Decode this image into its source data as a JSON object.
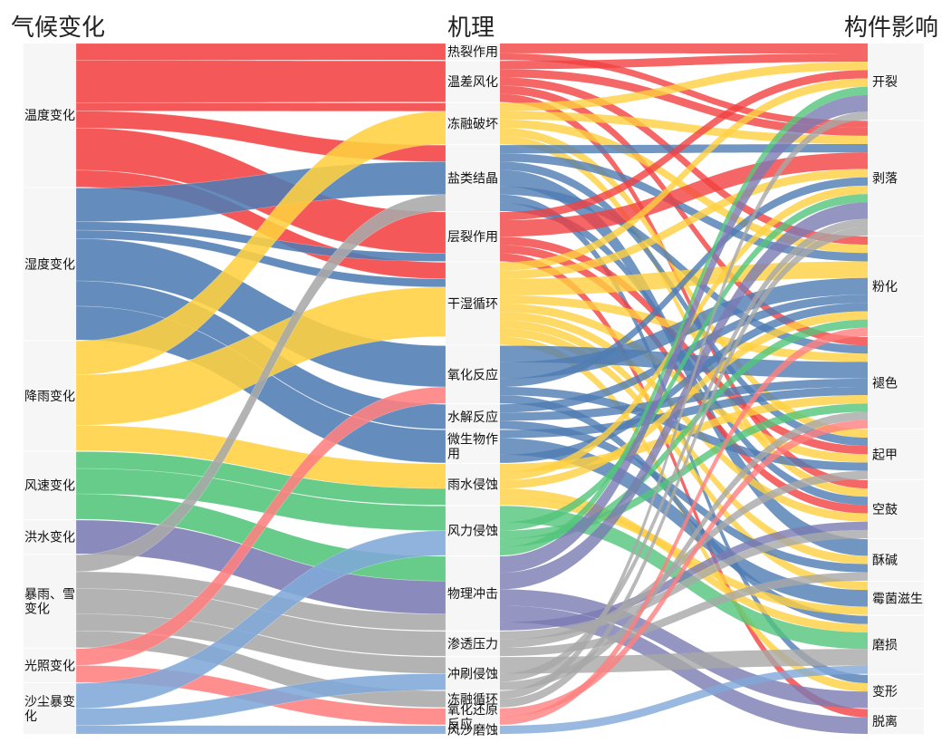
{
  "titles": {
    "left": "气候变化",
    "middle": "机理",
    "right": "构件影响"
  },
  "colors": {
    "red": "#f24141",
    "blue": "#4f7cb3",
    "yellow": "#ffd040",
    "green": "#52c47a",
    "purple": "#7a7ab3",
    "gray": "#a8a8a8",
    "pink": "#ff8080",
    "lightblue": "#7fa8d8",
    "node_bg": "#f6f6f6"
  },
  "left_nodes": [
    {
      "name": "温度变化",
      "color": "red"
    },
    {
      "name": "湿度变化",
      "color": "blue"
    },
    {
      "name": "降雨变化",
      "color": "yellow"
    },
    {
      "name": "风速变化",
      "color": "green"
    },
    {
      "name": "洪水变化",
      "color": "purple"
    },
    {
      "name": "暴雨、雪变化",
      "color": "gray"
    },
    {
      "name": "光照变化",
      "color": "pink"
    },
    {
      "name": "沙尘暴变化",
      "color": "lightblue"
    }
  ],
  "middle_nodes": [
    {
      "name": "热裂作用"
    },
    {
      "name": "温差风化"
    },
    {
      "name": "冻融破坏"
    },
    {
      "name": "盐类结晶"
    },
    {
      "name": "层裂作用"
    },
    {
      "name": "干湿循环"
    },
    {
      "name": "氧化反应"
    },
    {
      "name": "水解反应"
    },
    {
      "name": "微生物作用"
    },
    {
      "name": "雨水侵蚀"
    },
    {
      "name": "风力侵蚀"
    },
    {
      "name": "物理冲击"
    },
    {
      "name": "渗透压力"
    },
    {
      "name": "冲刷侵蚀"
    },
    {
      "name": "冻融循环"
    },
    {
      "name": "氧化还原反应"
    },
    {
      "name": "风沙磨蚀"
    }
  ],
  "right_nodes": [
    {
      "name": "开裂"
    },
    {
      "name": "剥落"
    },
    {
      "name": "粉化"
    },
    {
      "name": "褪色"
    },
    {
      "name": "起甲"
    },
    {
      "name": "空鼓"
    },
    {
      "name": "酥碱"
    },
    {
      "name": "霉菌滋生"
    },
    {
      "name": "磨损"
    },
    {
      "name": "变形"
    },
    {
      "name": "脱离"
    }
  ],
  "links_left": [
    {
      "source": "温度变化",
      "target": "热裂作用",
      "value": 10
    },
    {
      "source": "温度变化",
      "target": "温差风化",
      "value": 25
    },
    {
      "source": "温度变化",
      "target": "冻融破坏",
      "value": 5
    },
    {
      "source": "温度变化",
      "target": "盐类结晶",
      "value": 10
    },
    {
      "source": "温度变化",
      "target": "层裂作用",
      "value": 25
    },
    {
      "source": "温度变化",
      "target": "干湿循环",
      "value": 10
    },
    {
      "source": "湿度变化",
      "target": "盐类结晶",
      "value": 20
    },
    {
      "source": "湿度变化",
      "target": "层裂作用",
      "value": 5
    },
    {
      "source": "湿度变化",
      "target": "干湿循环",
      "value": 5
    },
    {
      "source": "湿度变化",
      "target": "氧化反应",
      "value": 25
    },
    {
      "source": "湿度变化",
      "target": "水解反应",
      "value": 15
    },
    {
      "source": "湿度变化",
      "target": "微生物作用",
      "value": 20
    },
    {
      "source": "降雨变化",
      "target": "冻融破坏",
      "value": 20
    },
    {
      "source": "降雨变化",
      "target": "干湿循环",
      "value": 30
    },
    {
      "source": "降雨变化",
      "target": "雨水侵蚀",
      "value": 15
    },
    {
      "source": "风速变化",
      "target": "雨水侵蚀",
      "value": 10
    },
    {
      "source": "风速变化",
      "target": "风力侵蚀",
      "value": 15
    },
    {
      "source": "风速变化",
      "target": "物理冲击",
      "value": 15
    },
    {
      "source": "洪水变化",
      "target": "物理冲击",
      "value": 20
    },
    {
      "source": "暴雨、雪变化",
      "target": "盐类结晶",
      "value": 10
    },
    {
      "source": "暴雨、雪变化",
      "target": "物理冲击",
      "value": 10
    },
    {
      "source": "暴雨、雪变化",
      "target": "渗透压力",
      "value": 15
    },
    {
      "source": "暴雨、雪变化",
      "target": "冲刷侵蚀",
      "value": 10
    },
    {
      "source": "暴雨、雪变化",
      "target": "冻融循环",
      "value": 10
    },
    {
      "source": "光照变化",
      "target": "氧化反应",
      "value": 10
    },
    {
      "source": "光照变化",
      "target": "氧化还原反应",
      "value": 10
    },
    {
      "source": "沙尘暴变化",
      "target": "风力侵蚀",
      "value": 15
    },
    {
      "source": "沙尘暴变化",
      "target": "冲刷侵蚀",
      "value": 10
    },
    {
      "source": "沙尘暴变化",
      "target": "风沙磨蚀",
      "value": 5
    }
  ],
  "links_right": [
    {
      "source": "热裂作用",
      "target": "开裂",
      "value": 6
    },
    {
      "source": "热裂作用",
      "target": "剥落",
      "value": 4
    },
    {
      "source": "温差风化",
      "target": "开裂",
      "value": 5
    },
    {
      "source": "温差风化",
      "target": "剥落",
      "value": 5
    },
    {
      "source": "温差风化",
      "target": "粉化",
      "value": 5
    },
    {
      "source": "温差风化",
      "target": "褪色",
      "value": 5
    },
    {
      "source": "温差风化",
      "target": "空鼓",
      "value": 5
    },
    {
      "source": "冻融破坏",
      "target": "开裂",
      "value": 5
    },
    {
      "source": "冻融破坏",
      "target": "剥落",
      "value": 5
    },
    {
      "source": "冻融破坏",
      "target": "粉化",
      "value": 5
    },
    {
      "source": "冻融破坏",
      "target": "起甲",
      "value": 5
    },
    {
      "source": "冻融破坏",
      "target": "空鼓",
      "value": 5
    },
    {
      "source": "盐类结晶",
      "target": "剥落",
      "value": 5
    },
    {
      "source": "盐类结晶",
      "target": "粉化",
      "value": 5
    },
    {
      "source": "盐类结晶",
      "target": "起甲",
      "value": 5
    },
    {
      "source": "盐类结晶",
      "target": "酥碱",
      "value": 10
    },
    {
      "source": "盐类结晶",
      "target": "褪色",
      "value": 5
    },
    {
      "source": "盐类结晶",
      "target": "变形",
      "value": 5
    },
    {
      "source": "盐类结晶",
      "target": "空鼓",
      "value": 5
    },
    {
      "source": "层裂作用",
      "target": "开裂",
      "value": 5
    },
    {
      "source": "层裂作用",
      "target": "剥落",
      "value": 10
    },
    {
      "source": "层裂作用",
      "target": "起甲",
      "value": 5
    },
    {
      "source": "层裂作用",
      "target": "空鼓",
      "value": 5
    },
    {
      "source": "层裂作用",
      "target": "脱离",
      "value": 5
    },
    {
      "source": "干湿循环",
      "target": "开裂",
      "value": 5
    },
    {
      "source": "干湿循环",
      "target": "剥落",
      "value": 5
    },
    {
      "source": "干湿循环",
      "target": "粉化",
      "value": 10
    },
    {
      "source": "干湿循环",
      "target": "褪色",
      "value": 5
    },
    {
      "source": "干湿循环",
      "target": "起甲",
      "value": 5
    },
    {
      "source": "干湿循环",
      "target": "空鼓",
      "value": 5
    },
    {
      "source": "干湿循环",
      "target": "酥碱",
      "value": 5
    },
    {
      "source": "干湿循环",
      "target": "霉菌滋生",
      "value": 5
    },
    {
      "source": "干湿循环",
      "target": "变形",
      "value": 5
    },
    {
      "source": "氧化反应",
      "target": "褪色",
      "value": 10
    },
    {
      "source": "氧化反应",
      "target": "粉化",
      "value": 10
    },
    {
      "source": "氧化反应",
      "target": "剥落",
      "value": 5
    },
    {
      "source": "氧化反应",
      "target": "起甲",
      "value": 5
    },
    {
      "source": "氧化反应",
      "target": "磨损",
      "value": 5
    },
    {
      "source": "水解反应",
      "target": "粉化",
      "value": 5
    },
    {
      "source": "水解反应",
      "target": "褪色",
      "value": 5
    },
    {
      "source": "水解反应",
      "target": "酥碱",
      "value": 5
    },
    {
      "source": "微生物作用",
      "target": "褪色",
      "value": 5
    },
    {
      "source": "微生物作用",
      "target": "霉菌滋生",
      "value": 10
    },
    {
      "source": "微生物作用",
      "target": "粉化",
      "value": 5
    },
    {
      "source": "雨水侵蚀",
      "target": "褪色",
      "value": 5
    },
    {
      "source": "雨水侵蚀",
      "target": "剥落",
      "value": 5
    },
    {
      "source": "雨水侵蚀",
      "target": "粉化",
      "value": 5
    },
    {
      "source": "雨水侵蚀",
      "target": "磨损",
      "value": 5
    },
    {
      "source": "雨水侵蚀",
      "target": "霉菌滋生",
      "value": 5
    },
    {
      "source": "风力侵蚀",
      "target": "磨损",
      "value": 10
    },
    {
      "source": "风力侵蚀",
      "target": "剥落",
      "value": 5
    },
    {
      "source": "风力侵蚀",
      "target": "褪色",
      "value": 5
    },
    {
      "source": "风力侵蚀",
      "target": "粉化",
      "value": 5
    },
    {
      "source": "风力侵蚀",
      "target": "开裂",
      "value": 5
    },
    {
      "source": "物理冲击",
      "target": "开裂",
      "value": 10
    },
    {
      "source": "物理冲击",
      "target": "剥落",
      "value": 10
    },
    {
      "source": "物理冲击",
      "target": "变形",
      "value": 10
    },
    {
      "source": "物理冲击",
      "target": "脱离",
      "value": 10
    },
    {
      "source": "物理冲击",
      "target": "空鼓",
      "value": 5
    },
    {
      "source": "渗透压力",
      "target": "空鼓",
      "value": 5
    },
    {
      "source": "渗透压力",
      "target": "起甲",
      "value": 5
    },
    {
      "source": "渗透压力",
      "target": "酥碱",
      "value": 5
    },
    {
      "source": "冲刷侵蚀",
      "target": "磨损",
      "value": 10
    },
    {
      "source": "冲刷侵蚀",
      "target": "剥落",
      "value": 5
    },
    {
      "source": "冲刷侵蚀",
      "target": "褪色",
      "value": 5
    },
    {
      "source": "冻融循环",
      "target": "开裂",
      "value": 5
    },
    {
      "source": "冻融循环",
      "target": "剥落",
      "value": 5
    },
    {
      "source": "氧化还原反应",
      "target": "褪色",
      "value": 5
    },
    {
      "source": "氧化还原反应",
      "target": "粉化",
      "value": 5
    },
    {
      "source": "风沙磨蚀",
      "target": "磨损",
      "value": 5
    }
  ]
}
